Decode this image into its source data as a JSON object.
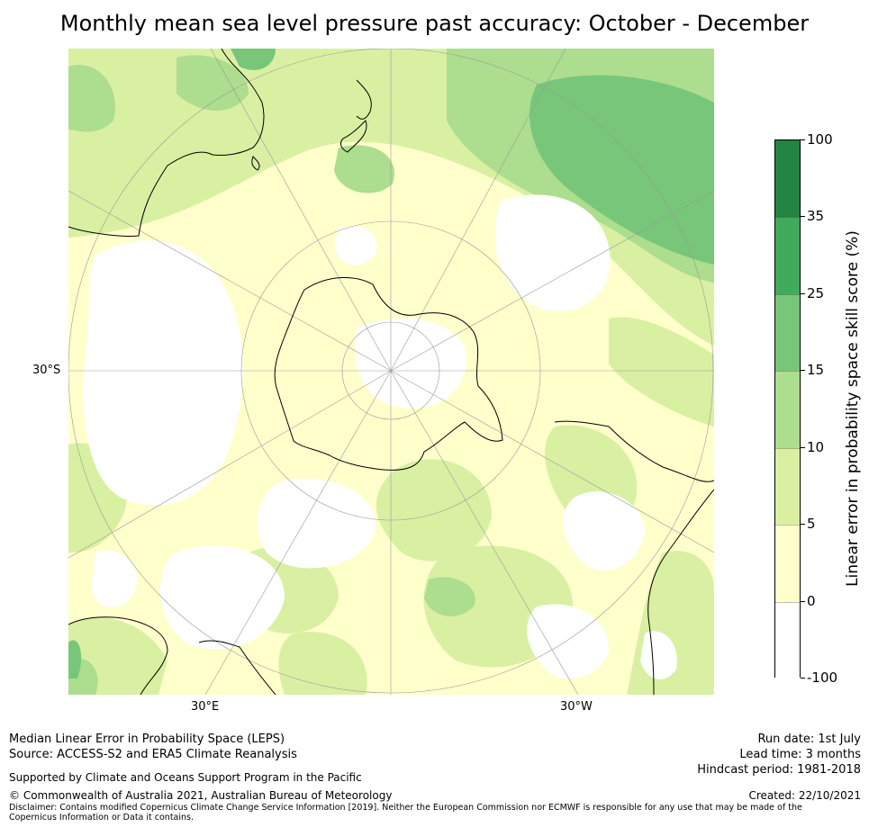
{
  "title": "Monthly mean sea level pressure past accuracy: October - December",
  "map": {
    "projection": "south-polar",
    "lat_label": "30°S",
    "lon_labels": {
      "east": "30°E",
      "west": "30°W"
    }
  },
  "colorbar": {
    "label": "Linear error in probability space skill score (%)",
    "ticks": [
      "100",
      "35",
      "25",
      "15",
      "10",
      "5",
      "0",
      "-100"
    ],
    "bands": [
      {
        "from": "35",
        "to": "100",
        "color": "#238443"
      },
      {
        "from": "25",
        "to": "35",
        "color": "#41ab5d"
      },
      {
        "from": "15",
        "to": "25",
        "color": "#78c679"
      },
      {
        "from": "10",
        "to": "15",
        "color": "#addd8e"
      },
      {
        "from": "5",
        "to": "10",
        "color": "#d9f0a3"
      },
      {
        "from": "0",
        "to": "5",
        "color": "#ffffcc"
      },
      {
        "from": "-100",
        "to": "0",
        "color": "#ffffff"
      }
    ]
  },
  "footer": {
    "line1": "Median Linear Error in Probability Space (LEPS)",
    "line2": "Source: ACCESS-S2 and ERA5 Climate Reanalysis",
    "support": "Supported by Climate and Oceans Support Program in the Pacific",
    "copyright": "© Commonwealth of Australia 2021, Australian Bureau of Meteorology",
    "disclaimer": "Disclaimer: Contains modified Copernicus Climate Change Service Information [2019]. Neither the European Commission nor ECMWF is responsible for any use that may be made of the Copernicus Information or Data it contains.",
    "run_date": "Run date: 1st July",
    "lead_time": "Lead time: 3 months",
    "hindcast": "Hindcast period: 1981-2018",
    "created": "Created: 22/10/2021"
  }
}
